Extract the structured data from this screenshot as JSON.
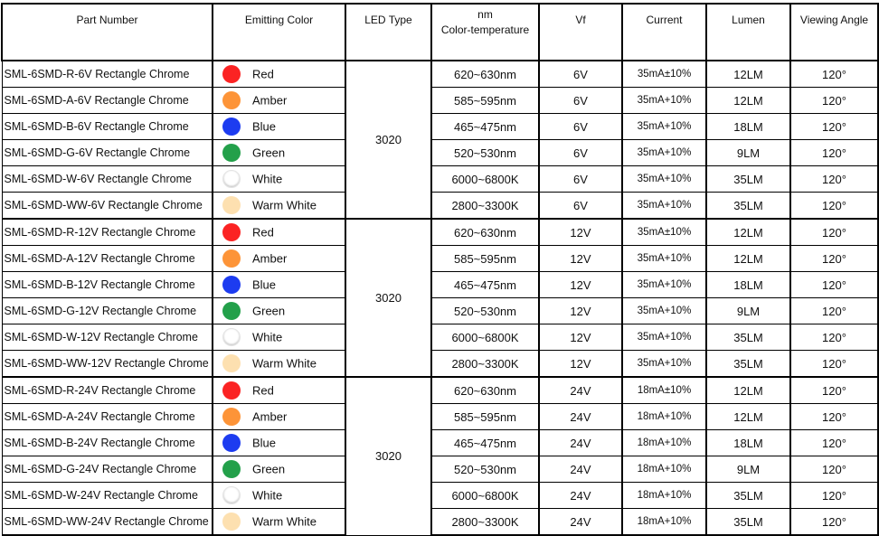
{
  "headers": [
    "Part Number",
    "Emitting Color",
    "LED Type",
    "nm\nColor-temperature",
    "Vf",
    "Current",
    "Lumen",
    "Viewing Angle"
  ],
  "header_nm": "nm",
  "header_ct": "Color-temperature",
  "colors": [
    {
      "name": "Red",
      "hex": "#fb2323",
      "wave": "620~630nm",
      "lumen": "12LM"
    },
    {
      "name": "Amber",
      "hex": "#fd9438",
      "wave": "585~595nm",
      "lumen": "12LM"
    },
    {
      "name": "Blue",
      "hex": "#1d3cf0",
      "wave": "465~475nm",
      "lumen": "18LM"
    },
    {
      "name": "Green",
      "hex": "#23a04a",
      "wave": "520~530nm",
      "lumen": "9LM"
    },
    {
      "name": "White",
      "hex": "#ffffff",
      "wave": "6000~6800K",
      "lumen": "35LM"
    },
    {
      "name": "Warm White",
      "hex": "#fde0b0",
      "wave": "2800~3300K",
      "lumen": "35LM"
    }
  ],
  "codes": [
    "R",
    "A",
    "B",
    "G",
    "W",
    "WW"
  ],
  "groups": [
    {
      "voltage": "6V",
      "led_type": "3020",
      "current_first": "35mA±10%",
      "current": "35mA+10%"
    },
    {
      "voltage": "12V",
      "led_type": "3020",
      "current_first": "35mA±10%",
      "current": "35mA+10%"
    },
    {
      "voltage": "24V",
      "led_type": "3020",
      "current_first": "18mA±10%",
      "current": "18mA+10%"
    }
  ],
  "part_prefix": "SML-6SMD-",
  "part_suffix": " Rectangle Chrome",
  "viewing_angle": "120°"
}
